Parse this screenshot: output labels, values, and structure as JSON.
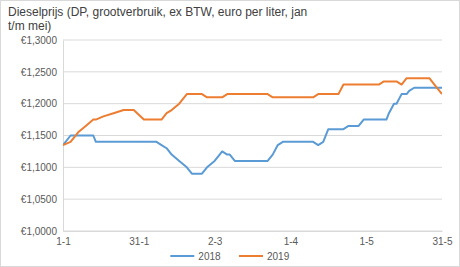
{
  "chart_data": {
    "type": "line",
    "title": "Dieselprijs (DP, grootverbruik, ex BTW, euro per liter, jan t/m mei)",
    "x": [
      1,
      4,
      7,
      10,
      13,
      14,
      17,
      21,
      25,
      29,
      33,
      38,
      40,
      42,
      44,
      47,
      50,
      52,
      56,
      58,
      61,
      63,
      64,
      66,
      67,
      69,
      82,
      84,
      86,
      88,
      100,
      102,
      104,
      106,
      110,
      112,
      114,
      118,
      120,
      126,
      128,
      129,
      130,
      132,
      133,
      135,
      137,
      138,
      140,
      146,
      148,
      151
    ],
    "series": [
      {
        "name": "2018",
        "color": "#5b9bd5",
        "values": [
          1.135,
          1.15,
          1.15,
          1.15,
          1.15,
          1.14,
          1.14,
          1.14,
          1.14,
          1.14,
          1.14,
          1.14,
          1.135,
          1.13,
          1.12,
          1.11,
          1.1,
          1.09,
          1.09,
          1.1,
          1.11,
          1.12,
          1.125,
          1.12,
          1.12,
          1.11,
          1.11,
          1.12,
          1.135,
          1.14,
          1.14,
          1.135,
          1.14,
          1.16,
          1.16,
          1.16,
          1.165,
          1.165,
          1.175,
          1.175,
          1.175,
          1.175,
          1.185,
          1.2,
          1.2,
          1.215,
          1.215,
          1.22,
          1.225,
          1.225,
          1.225,
          1.225
        ]
      },
      {
        "name": "2019",
        "color": "#ed7d31",
        "values": [
          1.135,
          1.14,
          1.155,
          1.165,
          1.175,
          1.175,
          1.18,
          1.185,
          1.19,
          1.19,
          1.175,
          1.175,
          1.175,
          1.185,
          1.19,
          1.2,
          1.215,
          1.215,
          1.215,
          1.21,
          1.21,
          1.21,
          1.21,
          1.215,
          1.215,
          1.215,
          1.215,
          1.21,
          1.21,
          1.21,
          1.21,
          1.215,
          1.215,
          1.215,
          1.215,
          1.23,
          1.23,
          1.23,
          1.23,
          1.23,
          1.235,
          1.235,
          1.235,
          1.235,
          1.235,
          1.23,
          1.24,
          1.24,
          1.24,
          1.24,
          1.23,
          1.215
        ]
      }
    ],
    "xlim": [
      1,
      151
    ],
    "xticks": [
      {
        "value": 1,
        "label": "1-1"
      },
      {
        "value": 31,
        "label": "31-1"
      },
      {
        "value": 61,
        "label": "2-3"
      },
      {
        "value": 91,
        "label": "1-4"
      },
      {
        "value": 121,
        "label": "1-5"
      },
      {
        "value": 151,
        "label": "31-5"
      }
    ],
    "ylim": [
      1.0,
      1.3
    ],
    "yticks": [
      {
        "value": 1.0,
        "label": "€1,0000"
      },
      {
        "value": 1.05,
        "label": "€1,0500"
      },
      {
        "value": 1.1,
        "label": "€1,1000"
      },
      {
        "value": 1.15,
        "label": "€1,1500"
      },
      {
        "value": 1.2,
        "label": "€1,2000"
      },
      {
        "value": 1.25,
        "label": "€1,2500"
      },
      {
        "value": 1.3,
        "label": "€1,3000"
      }
    ],
    "grid": true,
    "legend": "bottom"
  }
}
